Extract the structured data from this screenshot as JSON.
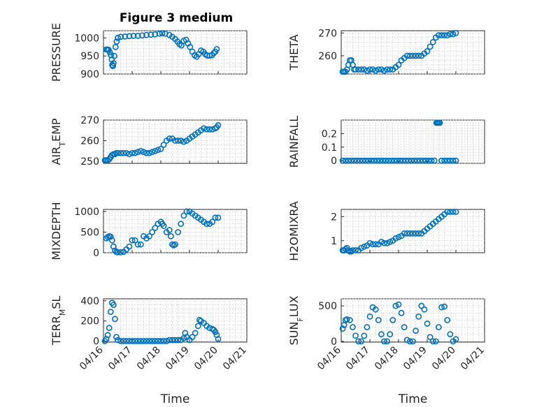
{
  "figure": {
    "title": "Figure 3 medium"
  },
  "colors": {
    "marker": "#0072BD",
    "axis": "#262626",
    "grid": "#c8c8c8"
  },
  "chart_data": [
    {
      "type": "scatter",
      "ylabel": "PRESSURE",
      "ylabel_sub": "",
      "ylabel_tail": "",
      "xlabel": "",
      "title": "Figure 3 medium",
      "ylim": [
        900,
        1020
      ],
      "yticks": [
        900,
        950,
        1000
      ],
      "ytick_labels": [
        "900",
        "950",
        "1000"
      ],
      "xlim": [
        0,
        5
      ],
      "xticks": [
        0,
        1,
        2,
        3,
        4,
        5
      ],
      "xtick_labels": [],
      "grid": "on",
      "x": [
        0.1,
        0.14,
        0.18,
        0.22,
        0.26,
        0.29,
        0.31,
        0.33,
        0.35,
        0.38,
        0.42,
        0.46,
        0.5,
        0.6,
        0.75,
        0.9,
        1.05,
        1.2,
        1.35,
        1.5,
        1.65,
        1.8,
        1.95,
        2.05,
        2.15,
        2.3,
        2.4,
        2.5,
        2.58,
        2.65,
        2.72,
        2.8,
        2.88,
        2.95,
        3.02,
        3.1,
        3.18,
        3.25,
        3.32,
        3.4,
        3.48,
        3.55,
        3.62,
        3.7,
        3.78,
        3.85,
        3.9,
        3.95
      ],
      "y": [
        968,
        968,
        967,
        960,
        952,
        940,
        925,
        922,
        930,
        950,
        975,
        990,
        1000,
        1003,
        1004,
        1005,
        1006,
        1006,
        1007,
        1008,
        1009,
        1010,
        1012,
        1013,
        1012,
        1008,
        1003,
        997,
        990,
        983,
        979,
        992,
        995,
        985,
        975,
        962,
        952,
        948,
        955,
        965,
        962,
        955,
        951,
        951,
        952,
        958,
        962,
        969
      ]
    },
    {
      "type": "scatter",
      "ylabel": "THETA",
      "ylabel_sub": "",
      "ylabel_tail": "",
      "xlabel": "",
      "ylim": [
        252,
        271
      ],
      "yticks": [
        260,
        270
      ],
      "ytick_labels": [
        "260",
        "270"
      ],
      "xlim": [
        0,
        5
      ],
      "xticks": [
        0,
        1,
        2,
        3,
        4,
        5
      ],
      "xtick_labels": [],
      "grid": "on",
      "x": [
        0.05,
        0.1,
        0.15,
        0.2,
        0.25,
        0.3,
        0.35,
        0.4,
        0.45,
        0.5,
        0.6,
        0.7,
        0.8,
        0.9,
        1.0,
        1.1,
        1.2,
        1.3,
        1.4,
        1.5,
        1.6,
        1.7,
        1.8,
        1.9,
        2.0,
        2.1,
        2.2,
        2.3,
        2.4,
        2.5,
        2.6,
        2.7,
        2.8,
        2.9,
        3.0,
        3.1,
        3.2,
        3.3,
        3.4,
        3.5,
        3.6,
        3.7,
        3.8,
        3.9,
        4.0
      ],
      "y": [
        253,
        253,
        253,
        254,
        256,
        258,
        258,
        256,
        254,
        254,
        254,
        254,
        254,
        253.5,
        254,
        254,
        253.5,
        254,
        254,
        253.5,
        254,
        254,
        254,
        255,
        256,
        258,
        259,
        260,
        260,
        260,
        260,
        260,
        260,
        261,
        262,
        264,
        266,
        268,
        269,
        269,
        269,
        269,
        269.5,
        269.5,
        270
      ]
    },
    {
      "type": "scatter",
      "ylabel": "AIR",
      "ylabel_sub": "T",
      "ylabel_tail": "EMP",
      "xlabel": "",
      "ylim": [
        249,
        270
      ],
      "yticks": [
        250,
        260,
        270
      ],
      "ytick_labels": [
        "250",
        "260",
        "270"
      ],
      "xlim": [
        0,
        5
      ],
      "xticks": [
        0,
        1,
        2,
        3,
        4,
        5
      ],
      "xtick_labels": [],
      "grid": "on",
      "x": [
        0.05,
        0.1,
        0.15,
        0.2,
        0.25,
        0.3,
        0.35,
        0.4,
        0.45,
        0.5,
        0.6,
        0.7,
        0.8,
        0.9,
        1.0,
        1.1,
        1.2,
        1.3,
        1.4,
        1.5,
        1.6,
        1.7,
        1.8,
        1.9,
        2.0,
        2.1,
        2.2,
        2.3,
        2.4,
        2.5,
        2.6,
        2.7,
        2.8,
        2.9,
        3.0,
        3.1,
        3.2,
        3.3,
        3.4,
        3.5,
        3.6,
        3.7,
        3.8,
        3.9,
        3.95,
        4.0
      ],
      "y": [
        250.5,
        250.5,
        250.5,
        251,
        252,
        253,
        253.5,
        253.5,
        254,
        254,
        254,
        254,
        254,
        253.5,
        254,
        254,
        254.5,
        255,
        254.5,
        254,
        254,
        254.5,
        255,
        255.5,
        256,
        258,
        260,
        261,
        261,
        260,
        260,
        260,
        259.5,
        260,
        261,
        262,
        263,
        264,
        265,
        266,
        265.5,
        265.5,
        265.5,
        266,
        266.5,
        267.5
      ]
    },
    {
      "type": "scatter",
      "ylabel": "RAINFALL",
      "ylabel_sub": "",
      "ylabel_tail": "",
      "xlabel": "",
      "ylim": [
        -0.02,
        0.3
      ],
      "yticks": [
        0,
        0.1,
        0.2
      ],
      "ytick_labels": [
        "0",
        "0.1",
        "0.2"
      ],
      "xlim": [
        0,
        5
      ],
      "xticks": [
        0,
        1,
        2,
        3,
        4,
        5
      ],
      "xtick_labels": [],
      "grid": "on",
      "x": [
        0.05,
        0.15,
        0.25,
        0.35,
        0.45,
        0.55,
        0.65,
        0.75,
        0.85,
        0.95,
        1.05,
        1.15,
        1.25,
        1.35,
        1.45,
        1.55,
        1.65,
        1.75,
        1.85,
        1.95,
        2.05,
        2.15,
        2.25,
        2.35,
        2.45,
        2.55,
        2.65,
        2.75,
        2.85,
        2.95,
        3.05,
        3.15,
        3.25,
        3.32,
        3.36,
        3.4,
        3.44,
        3.5,
        3.6,
        3.7,
        3.8,
        3.9,
        4.0
      ],
      "y": [
        0,
        0,
        0,
        0,
        0,
        0,
        0,
        0,
        0,
        0,
        0,
        0,
        0,
        0,
        0,
        0,
        0,
        0,
        0,
        0,
        0,
        0,
        0,
        0,
        0,
        0,
        0,
        0,
        0,
        0,
        0,
        0,
        0,
        0.28,
        0.28,
        0.28,
        0.28,
        0,
        0,
        0,
        0,
        0,
        0
      ]
    },
    {
      "type": "scatter",
      "ylabel": "MIXDEPTH",
      "ylabel_sub": "",
      "ylabel_tail": "",
      "xlabel": "",
      "ylim": [
        0,
        1050
      ],
      "yticks": [
        0,
        500,
        1000
      ],
      "ytick_labels": [
        "0",
        "500",
        "1000"
      ],
      "xlim": [
        0,
        5
      ],
      "xticks": [
        0,
        1,
        2,
        3,
        4,
        5
      ],
      "xtick_labels": [],
      "grid": "on",
      "x": [
        0.1,
        0.15,
        0.2,
        0.25,
        0.3,
        0.35,
        0.4,
        0.45,
        0.5,
        0.6,
        0.7,
        0.8,
        0.9,
        1.0,
        1.1,
        1.2,
        1.3,
        1.4,
        1.5,
        1.6,
        1.7,
        1.8,
        1.9,
        2.0,
        2.05,
        2.1,
        2.2,
        2.3,
        2.35,
        2.4,
        2.45,
        2.5,
        2.6,
        2.7,
        2.8,
        2.9,
        3.0,
        3.1,
        3.2,
        3.3,
        3.4,
        3.5,
        3.6,
        3.7,
        3.8,
        3.9,
        4.0
      ],
      "y": [
        350,
        380,
        400,
        390,
        300,
        150,
        50,
        20,
        10,
        10,
        20,
        80,
        150,
        300,
        300,
        200,
        200,
        400,
        350,
        400,
        500,
        600,
        700,
        750,
        700,
        650,
        500,
        550,
        400,
        200,
        180,
        200,
        500,
        700,
        900,
        1000,
        1000,
        950,
        900,
        850,
        800,
        750,
        700,
        700,
        750,
        850,
        850
      ]
    },
    {
      "type": "scatter",
      "ylabel": "H2OMIXRA",
      "ylabel_sub": "",
      "ylabel_tail": "",
      "xlabel": "",
      "ylim": [
        0.5,
        2.3
      ],
      "yticks": [
        1,
        2
      ],
      "ytick_labels": [
        "1",
        "2"
      ],
      "xlim": [
        0,
        5
      ],
      "xticks": [
        0,
        1,
        2,
        3,
        4,
        5
      ],
      "xtick_labels": [],
      "grid": "on",
      "x": [
        0.05,
        0.1,
        0.15,
        0.2,
        0.25,
        0.3,
        0.35,
        0.4,
        0.5,
        0.6,
        0.7,
        0.8,
        0.9,
        1.0,
        1.1,
        1.2,
        1.3,
        1.4,
        1.5,
        1.6,
        1.7,
        1.8,
        1.9,
        2.0,
        2.1,
        2.2,
        2.3,
        2.4,
        2.5,
        2.6,
        2.7,
        2.8,
        2.9,
        3.0,
        3.1,
        3.2,
        3.3,
        3.4,
        3.5,
        3.6,
        3.7,
        3.8,
        3.9,
        4.0
      ],
      "y": [
        0.6,
        0.6,
        0.65,
        0.7,
        0.6,
        0.55,
        0.55,
        0.6,
        0.6,
        0.6,
        0.7,
        0.75,
        0.8,
        0.9,
        0.85,
        0.85,
        0.85,
        0.95,
        0.9,
        0.9,
        0.95,
        1.0,
        1.1,
        1.15,
        1.2,
        1.3,
        1.3,
        1.3,
        1.3,
        1.3,
        1.3,
        1.3,
        1.4,
        1.5,
        1.6,
        1.7,
        1.8,
        1.9,
        2.0,
        2.1,
        2.2,
        2.2,
        2.2,
        2.2
      ]
    },
    {
      "type": "scatter",
      "ylabel": "TERR",
      "ylabel_sub": "M",
      "ylabel_tail": "SL",
      "xlabel": "Time",
      "ylim": [
        -10,
        420
      ],
      "yticks": [
        0,
        200,
        400
      ],
      "ytick_labels": [
        "0",
        "200",
        "400"
      ],
      "xlim": [
        0,
        5
      ],
      "xticks": [
        0,
        1,
        2,
        3,
        4,
        5
      ],
      "xtick_labels": [
        "04/16",
        "04/17",
        "04/18",
        "04/19",
        "04/20",
        "04/21"
      ],
      "grid": "on",
      "x": [
        0.05,
        0.1,
        0.15,
        0.2,
        0.25,
        0.3,
        0.35,
        0.4,
        0.45,
        0.5,
        0.6,
        0.7,
        0.8,
        0.9,
        1.0,
        1.1,
        1.2,
        1.3,
        1.4,
        1.5,
        1.6,
        1.7,
        1.8,
        1.9,
        2.0,
        2.1,
        2.2,
        2.3,
        2.4,
        2.5,
        2.6,
        2.7,
        2.8,
        2.85,
        2.9,
        3.0,
        3.1,
        3.2,
        3.3,
        3.35,
        3.4,
        3.5,
        3.6,
        3.7,
        3.8,
        3.85,
        3.9,
        3.95,
        4.0
      ],
      "y": [
        0,
        20,
        60,
        130,
        290,
        380,
        360,
        220,
        40,
        10,
        0,
        0,
        0,
        0,
        0,
        0,
        0,
        0,
        0,
        0,
        0,
        0,
        0,
        0,
        0,
        0,
        0,
        10,
        10,
        10,
        10,
        10,
        30,
        80,
        40,
        10,
        40,
        80,
        150,
        210,
        200,
        180,
        150,
        130,
        120,
        110,
        90,
        60,
        20
      ]
    },
    {
      "type": "scatter",
      "ylabel": "SUN",
      "ylabel_sub": "F",
      "ylabel_tail": "LUX",
      "xlabel": "Time",
      "ylim": [
        -10,
        600
      ],
      "yticks": [
        0,
        500
      ],
      "ytick_labels": [
        "0",
        "500"
      ],
      "xlim": [
        0,
        5
      ],
      "xticks": [
        0,
        1,
        2,
        3,
        4,
        5
      ],
      "xtick_labels": [
        "04/16",
        "04/17",
        "04/18",
        "04/19",
        "04/20",
        "04/21"
      ],
      "grid": "on",
      "x": [
        0.05,
        0.1,
        0.15,
        0.2,
        0.3,
        0.4,
        0.5,
        0.6,
        0.7,
        0.8,
        0.9,
        1.0,
        1.1,
        1.2,
        1.3,
        1.4,
        1.5,
        1.6,
        1.7,
        1.8,
        1.9,
        2.0,
        2.1,
        2.2,
        2.3,
        2.4,
        2.5,
        2.6,
        2.7,
        2.8,
        2.9,
        3.0,
        3.1,
        3.2,
        3.3,
        3.4,
        3.5,
        3.6,
        3.7,
        3.8,
        3.9,
        4.0
      ],
      "y": [
        180,
        230,
        300,
        310,
        300,
        200,
        80,
        0,
        0,
        80,
        200,
        350,
        480,
        450,
        300,
        100,
        0,
        0,
        100,
        300,
        500,
        520,
        400,
        200,
        20,
        0,
        0,
        150,
        350,
        500,
        450,
        250,
        60,
        0,
        0,
        200,
        480,
        490,
        300,
        100,
        0,
        30
      ]
    }
  ]
}
